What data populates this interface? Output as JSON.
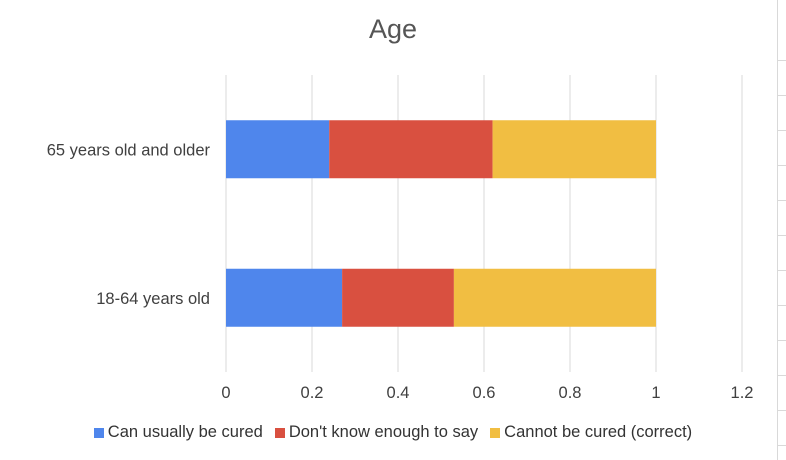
{
  "chart_data": {
    "type": "bar",
    "orientation": "horizontal",
    "stacked": true,
    "title": "Age",
    "categories": [
      "65 years old and older",
      "18-64 years old"
    ],
    "series": [
      {
        "name": "Can usually be cured",
        "color": "#4f86ec",
        "values": [
          0.24,
          0.27
        ]
      },
      {
        "name": "Don't know enough to say",
        "color": "#d95040",
        "values": [
          0.38,
          0.26
        ]
      },
      {
        "name": "Cannot be cured (correct)",
        "color": "#f1be42",
        "values": [
          0.38,
          0.47
        ]
      }
    ],
    "xlim": [
      0,
      1.2
    ],
    "xticks": [
      "0",
      "0.2",
      "0.4",
      "0.6",
      "0.8",
      "1",
      "1.2"
    ],
    "xlabel": "",
    "ylabel": "",
    "grid": true,
    "legend_position": "bottom"
  }
}
